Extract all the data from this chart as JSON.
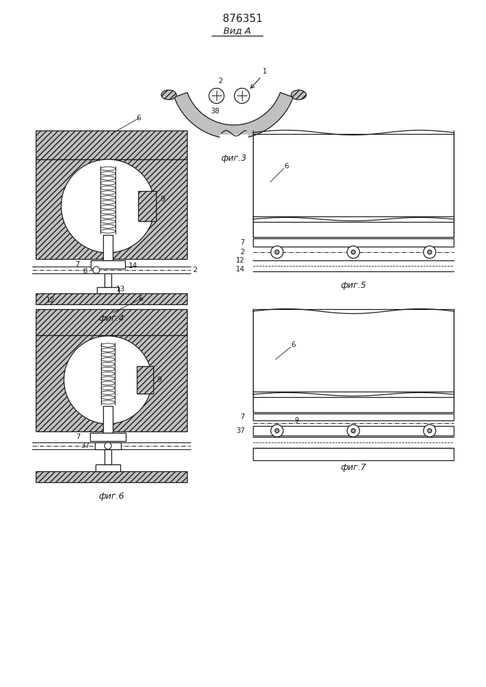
{
  "title": "876351",
  "title_fontsize": 11,
  "background_color": "#ffffff",
  "line_color": "#1a1a1a",
  "fig3_label": "Вид А",
  "fig3_caption": "фиг.3",
  "fig4_caption": "фиг.4",
  "fig5_caption": "фиг.5",
  "fig6_caption": "фиг.6",
  "fig7_caption": "фиг.7",
  "caption_fontsize": 9,
  "label_fontsize": 7.5
}
